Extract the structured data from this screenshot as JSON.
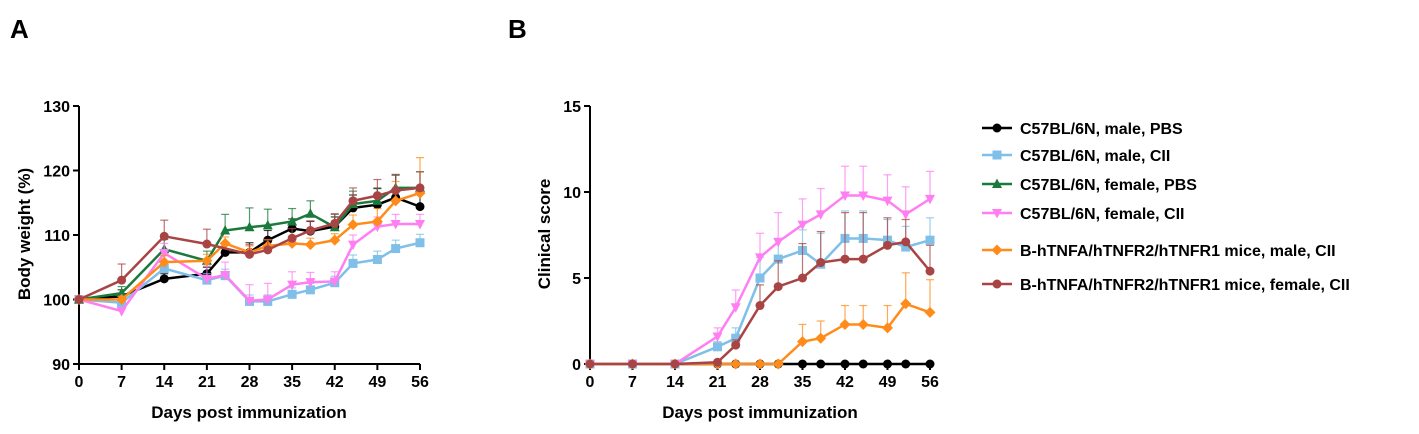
{
  "chart_data": [
    {
      "panel": "A",
      "type": "line",
      "xlabel": "Days post immunization",
      "ylabel": "Body weight (%)",
      "xlim": [
        0,
        56
      ],
      "ylim": [
        90,
        130
      ],
      "xticks": [
        0,
        7,
        14,
        21,
        28,
        35,
        42,
        49,
        56
      ],
      "yticks": [
        90,
        100,
        110,
        120,
        130
      ],
      "series": [
        {
          "key": "m_pbs",
          "x": [
            0,
            7,
            14,
            21,
            24,
            28,
            31,
            35,
            38,
            42,
            45,
            49,
            52,
            56
          ],
          "y": [
            100,
            100.5,
            103.2,
            104,
            107.3,
            107.3,
            109.2,
            111,
            110.6,
            111.3,
            114.2,
            114.7,
            115.8,
            114.4
          ],
          "err": [
            0,
            1,
            0.8,
            1,
            1.5,
            1.5,
            1.5,
            1.5,
            1.5,
            1.5,
            2,
            2.5,
            3.5,
            3
          ]
        },
        {
          "key": "m_cii",
          "x": [
            0,
            7,
            14,
            21,
            24,
            28,
            31,
            35,
            38,
            42,
            45,
            49,
            52,
            56
          ],
          "y": [
            100,
            99.5,
            104.8,
            103,
            103.7,
            99.7,
            99.7,
            100.8,
            101.5,
            102.6,
            105.6,
            106.2,
            107.9,
            108.8
          ],
          "err": [
            0,
            0.5,
            1,
            1,
            1,
            1,
            1,
            1,
            1,
            1,
            1.3,
            1.3,
            1.3,
            1.3
          ]
        },
        {
          "key": "f_pbs",
          "x": [
            0,
            7,
            14,
            21,
            24,
            28,
            31,
            35,
            38,
            42,
            45,
            49,
            52,
            56
          ],
          "y": [
            100,
            101,
            107.8,
            106,
            110.7,
            111.2,
            111.5,
            112.1,
            113.3,
            111.2,
            114.8,
            115.3,
            117.3,
            117.3
          ],
          "err": [
            0,
            1,
            1.5,
            1.5,
            2.5,
            3,
            2.5,
            2,
            2,
            2,
            2,
            2,
            2,
            2.5
          ]
        },
        {
          "key": "f_cii",
          "x": [
            0,
            7,
            14,
            21,
            24,
            28,
            31,
            35,
            38,
            42,
            45,
            49,
            52,
            56
          ],
          "y": [
            100,
            98.2,
            107.2,
            103.2,
            103.8,
            99.8,
            100,
            102.3,
            102.7,
            102.8,
            108.5,
            111.3,
            111.7,
            111.7
          ],
          "err": [
            0,
            0.5,
            1.5,
            2,
            2,
            2.5,
            2.5,
            2,
            1.5,
            1.5,
            1.5,
            1.5,
            1.5,
            1.5
          ]
        },
        {
          "key": "tg_m_cii",
          "x": [
            0,
            7,
            14,
            21,
            24,
            28,
            31,
            35,
            38,
            42,
            45,
            49,
            52,
            56
          ],
          "y": [
            100,
            100,
            105.8,
            106,
            108.7,
            107.3,
            108.3,
            108.7,
            108.5,
            109.2,
            111.6,
            112.1,
            115.3,
            116.5
          ],
          "err": [
            0,
            0.5,
            1,
            1,
            1,
            1,
            1,
            1,
            1,
            1,
            1.5,
            2,
            3,
            5.5
          ]
        },
        {
          "key": "tg_f_cii",
          "x": [
            0,
            7,
            14,
            21,
            28,
            31,
            35,
            38,
            42,
            45,
            49,
            52,
            56
          ],
          "y": [
            100,
            103,
            109.8,
            108.6,
            107,
            107.7,
            109.5,
            110.7,
            111.8,
            115.3,
            116.1,
            116.9,
            117.3
          ],
          "err": [
            0,
            2.5,
            2.5,
            2.3,
            1.5,
            1.5,
            1.5,
            1.5,
            1.5,
            2,
            2.5,
            2.5,
            2.5
          ]
        }
      ]
    },
    {
      "panel": "B",
      "type": "line",
      "xlabel": "Days post immunization",
      "ylabel": "Clinical score",
      "xlim": [
        0,
        56
      ],
      "ylim": [
        0,
        15
      ],
      "xticks": [
        0,
        7,
        14,
        21,
        28,
        35,
        42,
        49,
        56
      ],
      "yticks": [
        0,
        5,
        10,
        15
      ],
      "series": [
        {
          "key": "m_pbs",
          "x": [
            0,
            7,
            14,
            21,
            24,
            28,
            31,
            35,
            38,
            42,
            45,
            49,
            52,
            56
          ],
          "y": [
            0,
            0,
            0,
            0,
            0,
            0,
            0,
            0,
            0,
            0,
            0,
            0,
            0,
            0
          ],
          "err": [
            0,
            0,
            0,
            0,
            0,
            0,
            0,
            0,
            0,
            0,
            0,
            0,
            0,
            0
          ]
        },
        {
          "key": "m_cii",
          "x": [
            0,
            7,
            14,
            21,
            24,
            28,
            31,
            35,
            38,
            42,
            45,
            49,
            52,
            56
          ],
          "y": [
            0,
            0,
            0,
            1,
            1.5,
            5,
            6.1,
            6.6,
            5.8,
            7.3,
            7.3,
            7.2,
            6.8,
            7.2
          ],
          "err": [
            0,
            0,
            0,
            0.3,
            0.6,
            1.2,
            1.2,
            1.2,
            1.8,
            1.6,
            1.6,
            1.2,
            1.2,
            1.3
          ]
        },
        {
          "key": "f_pbs",
          "x": [],
          "y": [],
          "err": []
        },
        {
          "key": "f_cii",
          "x": [
            0,
            7,
            14,
            21,
            24,
            28,
            31,
            35,
            38,
            42,
            45,
            49,
            52,
            56
          ],
          "y": [
            0,
            0,
            0,
            1.6,
            3.3,
            6.2,
            7.1,
            8.1,
            8.7,
            9.8,
            9.8,
            9.5,
            8.7,
            9.6
          ],
          "err": [
            0,
            0,
            0,
            0.5,
            1,
            1.4,
            1.7,
            1.5,
            1.5,
            1.7,
            1.7,
            1.5,
            1.6,
            1.6
          ]
        },
        {
          "key": "tg_m_cii",
          "x": [
            0,
            7,
            14,
            21,
            24,
            28,
            31,
            35,
            38,
            42,
            45,
            49,
            52,
            56
          ],
          "y": [
            0,
            0,
            0,
            0,
            0,
            0,
            0,
            1.3,
            1.5,
            2.3,
            2.3,
            2.1,
            3.5,
            3
          ],
          "err": [
            0,
            0,
            0,
            0,
            0,
            0,
            0,
            1,
            1,
            1.1,
            1.1,
            1.3,
            1.8,
            1.9
          ]
        },
        {
          "key": "tg_f_cii",
          "x": [
            0,
            7,
            14,
            21,
            24,
            28,
            31,
            35,
            38,
            42,
            45,
            49,
            52,
            56
          ],
          "y": [
            0,
            0,
            0,
            0.1,
            1.1,
            3.4,
            4.5,
            5,
            5.9,
            6.1,
            6.1,
            6.9,
            7.1,
            5.4
          ],
          "err": [
            0,
            0,
            0,
            0,
            0.3,
            1.2,
            1.5,
            2,
            1.8,
            2.7,
            2.7,
            1.6,
            1.3,
            1.5
          ]
        }
      ]
    }
  ],
  "panels": {
    "a_label": "A",
    "b_label": "B"
  },
  "legend": {
    "position": "right",
    "entries": [
      {
        "key": "m_pbs",
        "name": "C57BL/6N, male, PBS",
        "color": "#000000",
        "marker": "circle"
      },
      {
        "key": "m_cii",
        "name": "C57BL/6N, male, CII",
        "color": "#7fbfe8",
        "marker": "square"
      },
      {
        "key": "f_pbs",
        "name": "C57BL/6N, female, PBS",
        "color": "#1a7a3c",
        "marker": "triangle-up"
      },
      {
        "key": "f_cii",
        "name": "C57BL/6N, female, CII",
        "color": "#ff7ff2",
        "marker": "triangle-down"
      },
      {
        "key": "tg_m_cii",
        "name": "B-hTNFA/hTNFR2/hTNFR1 mice, male, CII",
        "color": "#ff8c1a",
        "marker": "diamond"
      },
      {
        "key": "tg_f_cii",
        "name": "B-hTNFA/hTNFR2/hTNFR1 mice, female, CII",
        "color": "#a94444",
        "marker": "circle"
      }
    ]
  }
}
